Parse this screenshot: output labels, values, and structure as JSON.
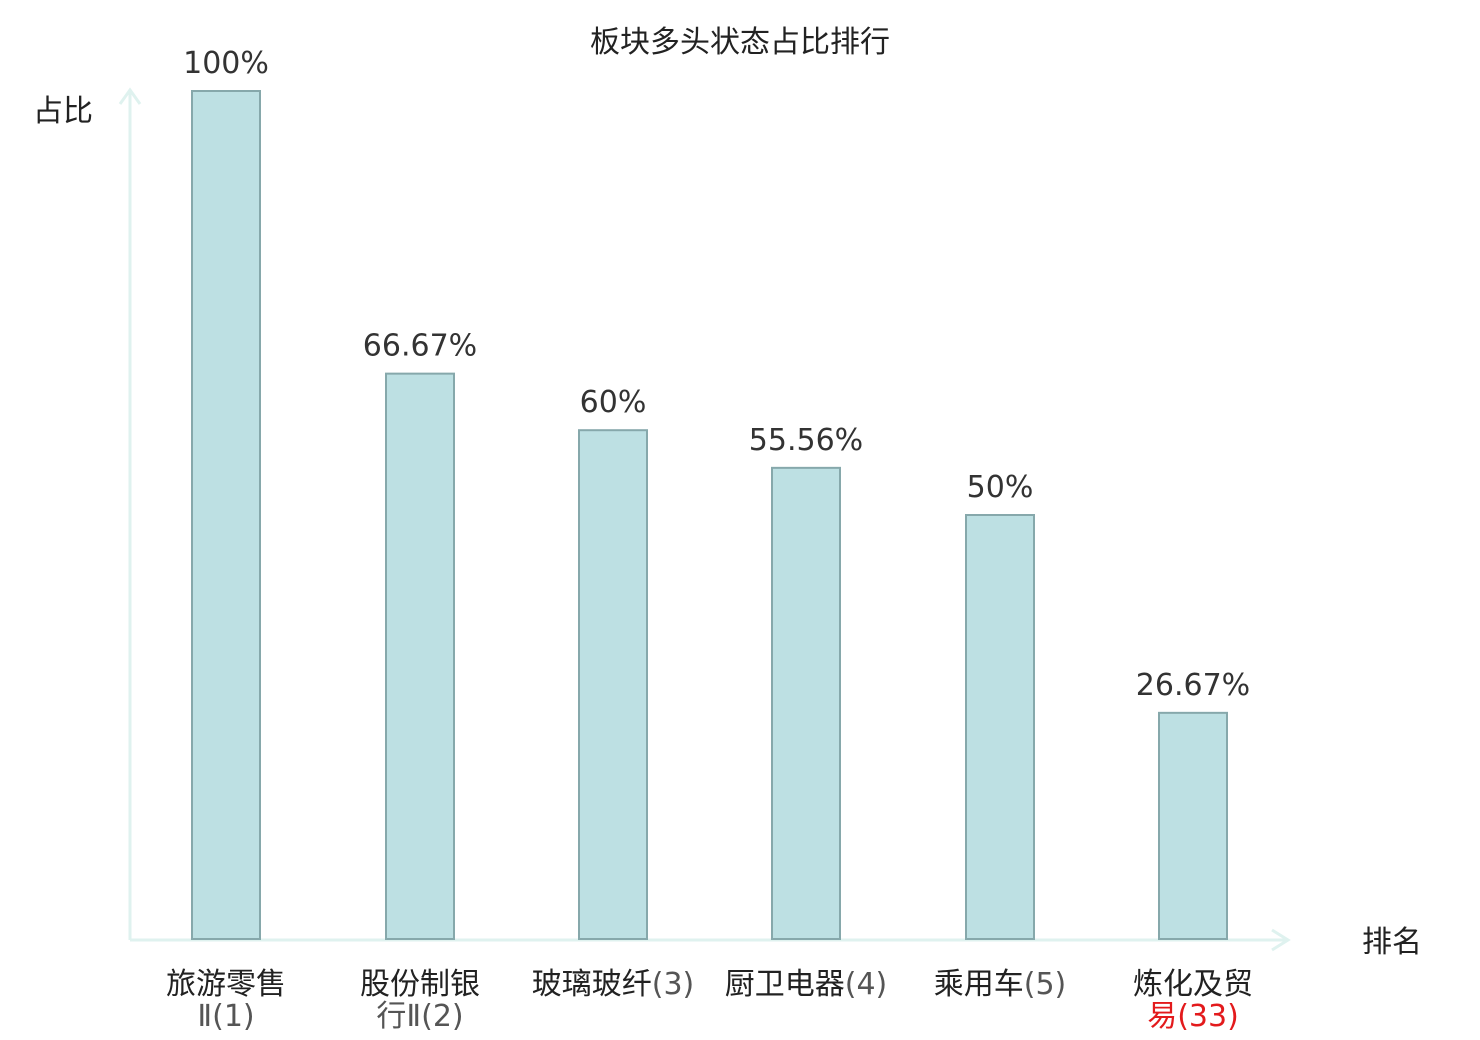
{
  "chart_data": {
    "type": "bar",
    "title": "板块多头状态占比排行",
    "ylabel": "占比",
    "xlabel": "排名",
    "ylim": [
      0,
      100
    ],
    "grid": false,
    "legend": "none",
    "categories": [
      {
        "line1": "旅游零售",
        "line2_text": "Ⅱ",
        "line2_num": "(1)",
        "highlight": false
      },
      {
        "line1": "股份制银",
        "line2_text": "行Ⅱ",
        "line2_num": "(2)",
        "highlight": false
      },
      {
        "line1": "玻璃玻纤",
        "line1_num": "(3)",
        "highlight": false
      },
      {
        "line1": "厨卫电器",
        "line1_num": "(4)",
        "highlight": false
      },
      {
        "line1": "乘用车",
        "line1_num": "(5)",
        "highlight": false
      },
      {
        "line1": "炼化及贸",
        "line2_text": "易",
        "line2_num": "(33)",
        "highlight": true
      }
    ],
    "values": [
      100,
      66.67,
      60,
      55.56,
      50,
      26.67
    ],
    "value_labels": [
      "100%",
      "66.67%",
      "60%",
      "55.56%",
      "50%",
      "26.67%"
    ],
    "colors": {
      "bar_fill": "#bde0e3",
      "bar_stroke": "#86a8ab",
      "axis": "#dff2ef",
      "highlight_text": "#e31a1c"
    }
  }
}
